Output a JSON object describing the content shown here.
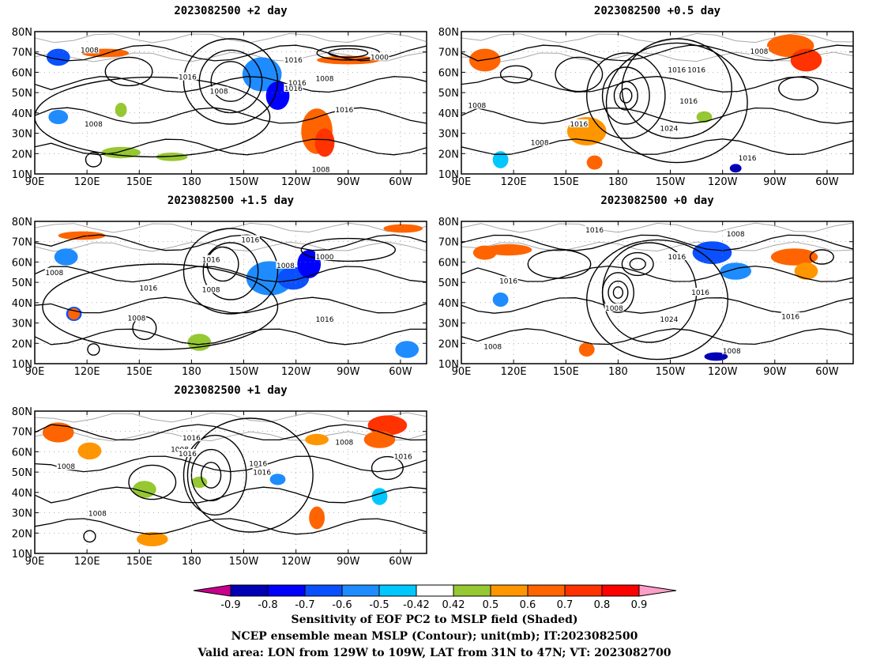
{
  "panels": [
    {
      "title": "2023082500 +2 day",
      "contours": [
        "1008",
        "1016",
        "1008",
        "1016",
        "1016",
        "1000",
        "1008",
        "1016",
        "1008",
        "1016",
        "1008"
      ]
    },
    {
      "title": "2023082500 +0.5 day",
      "contours": [
        "1008",
        "1016",
        "1008",
        "1016",
        "1016",
        "1016",
        "1024",
        "1008",
        "1016"
      ]
    },
    {
      "title": "2023082500 +1.5 day",
      "contours": [
        "1016",
        "1016",
        "1008",
        "1000",
        "1008",
        "1016",
        "1008",
        "1008",
        "1016"
      ]
    },
    {
      "title": "2023082500 +0 day",
      "contours": [
        "1016",
        "1008",
        "1016",
        "1016",
        "1008",
        "1024",
        "1016",
        "1008",
        "1016",
        "1008"
      ]
    },
    {
      "title": "2023082500 +1 day",
      "contours": [
        "1016",
        "1008",
        "1016",
        "1008",
        "1016",
        "1016",
        "1008",
        "1008",
        "1016"
      ]
    }
  ],
  "axes": {
    "lat_labels": [
      "80N",
      "70N",
      "60N",
      "50N",
      "40N",
      "30N",
      "20N",
      "10N"
    ],
    "lon_labels": [
      "90E",
      "120E",
      "150E",
      "180",
      "150W",
      "120W",
      "90W",
      "60W"
    ]
  },
  "colorbar": {
    "ticks": [
      "-0.9",
      "-0.8",
      "-0.7",
      "-0.6",
      "-0.5",
      "-0.42",
      "0.42",
      "0.5",
      "0.6",
      "0.7",
      "0.8",
      "0.9"
    ],
    "colors": [
      "#c8008c",
      "#0000b4",
      "#0000ff",
      "#0a50ff",
      "#1e8cff",
      "#00c8ff",
      "#ffffff",
      "#96c832",
      "#ff9600",
      "#ff6400",
      "#ff3200",
      "#ff0000",
      "#ff9ec8"
    ]
  },
  "caption": {
    "line1": "Sensitivity of EOF PC2 to MSLP field (Shaded)",
    "line2": "NCEP ensemble mean MSLP (Contour); unit(mb); IT:2023082500",
    "line3": "Valid area: LON from 129W to 109W, LAT from 31N to 47N; VT: 2023082700"
  }
}
